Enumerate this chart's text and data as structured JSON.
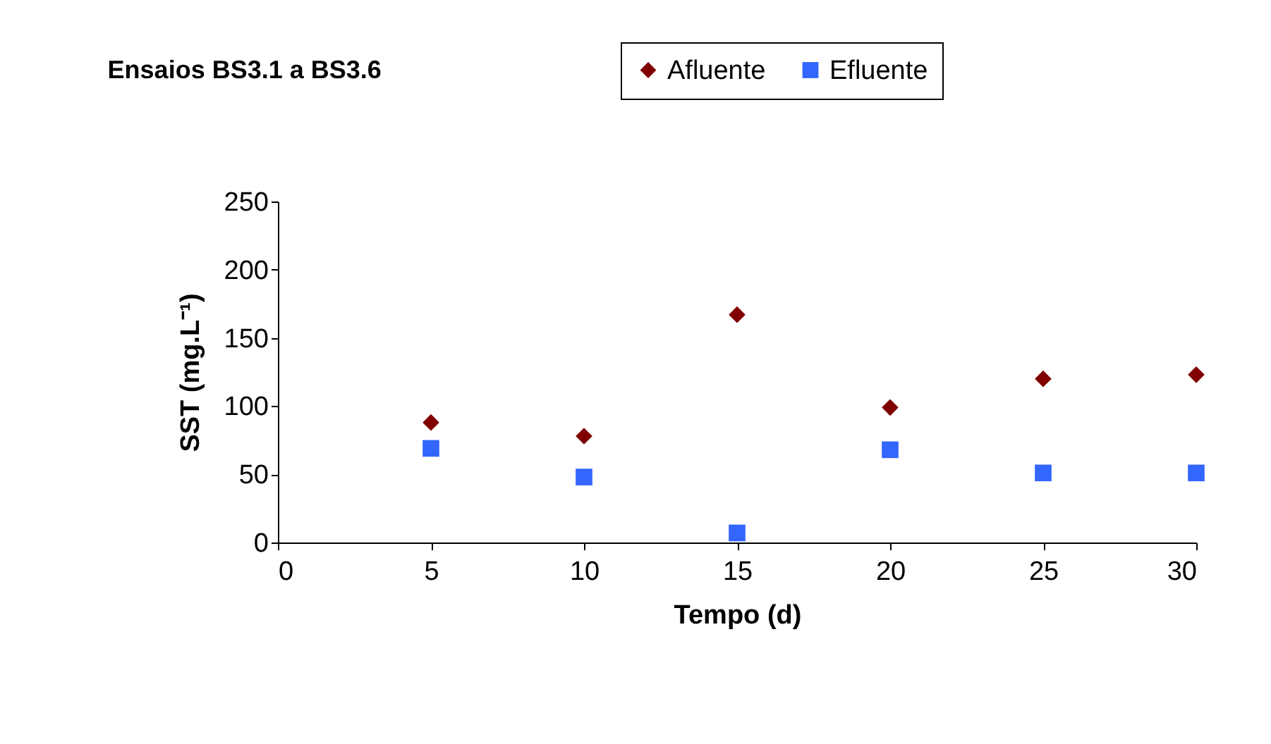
{
  "chart_data": {
    "type": "scatter",
    "title": "Ensaios BS3.1 a BS3.6",
    "xlabel": "Tempo (d)",
    "ylabel": "SST (mg.L⁻¹)",
    "x": [
      5,
      10,
      15,
      20,
      25,
      30
    ],
    "series": [
      {
        "name": "Afluente",
        "color": "#800000",
        "marker": "diamond",
        "values": [
          88,
          78,
          167,
          99,
          120,
          123
        ]
      },
      {
        "name": "Efluente",
        "color": "#3366ff",
        "marker": "square",
        "values": [
          69,
          48,
          7,
          68,
          51,
          51
        ]
      }
    ],
    "xlim": [
      0,
      30
    ],
    "xticks": [
      0,
      5,
      10,
      15,
      20,
      25,
      30
    ],
    "ylim": [
      0,
      250
    ],
    "yticks": [
      0,
      50,
      100,
      150,
      200,
      250
    ],
    "grid": false,
    "legend": "top"
  }
}
